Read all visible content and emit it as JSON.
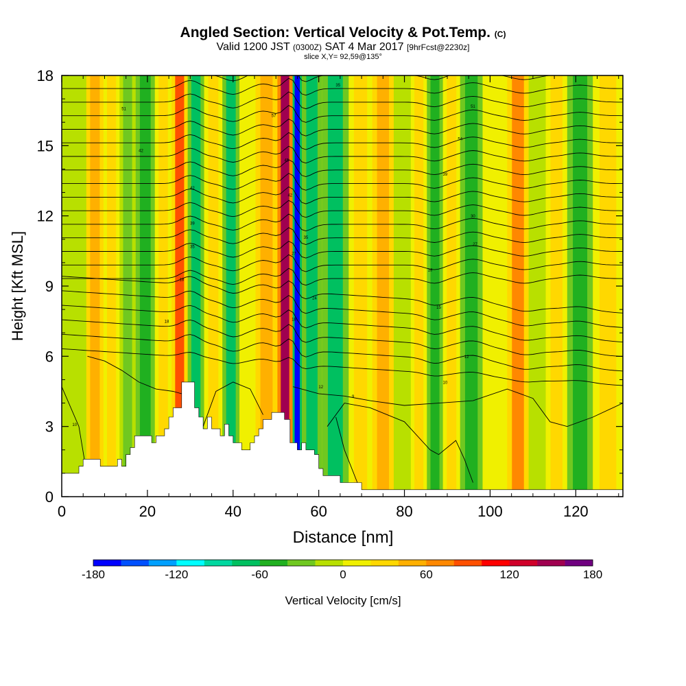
{
  "header": {
    "title": "Angled Section: Vertical Velocity & Pot.Temp.",
    "title_units": "(C)",
    "valid_prefix": "Valid 1200 JST",
    "valid_utc": "(0300Z)",
    "valid_date": "SAT 4 Mar 2017",
    "forecast_tag": "[9hrFcst@2230z]",
    "slice": "slice X,Y= 92,59@135°"
  },
  "chart_data": {
    "type": "heatmap",
    "title": "Angled Section: Vertical Velocity & Pot.Temp.",
    "xlabel": "Distance [nm]",
    "ylabel": "Height [Kft MSL]",
    "xlim": [
      0,
      131
    ],
    "ylim": [
      0,
      18
    ],
    "x_ticks": [
      "0",
      "20",
      "40",
      "60",
      "80",
      "100",
      "120"
    ],
    "y_ticks": [
      "0",
      "3",
      "6",
      "9",
      "12",
      "15",
      "18"
    ],
    "colorbar": {
      "label": "Vertical Velocity [cm/s]",
      "tick_labels": [
        "-180",
        "-120",
        "-60",
        "0",
        "60",
        "120",
        "180"
      ],
      "min": -180,
      "max": 180,
      "colors": [
        "#0000ff",
        "#0050ff",
        "#00a0ff",
        "#00ffff",
        "#00d8a0",
        "#00c060",
        "#20b020",
        "#70c820",
        "#b8e000",
        "#f0f000",
        "#ffd800",
        "#ffb000",
        "#ff8800",
        "#ff5000",
        "#ff0000",
        "#d0002a",
        "#a00050",
        "#700080"
      ]
    },
    "background_value": 20,
    "velocity_bands": [
      {
        "x": 4,
        "value": -20
      },
      {
        "x": 7.5,
        "value": 55
      },
      {
        "x": 12,
        "value": 20
      },
      {
        "x": 15,
        "value": -30
      },
      {
        "x": 19.5,
        "value": -45
      },
      {
        "x": 24,
        "value": 25
      },
      {
        "x": 27.3,
        "value": 80
      },
      {
        "x": 31.5,
        "value": -70
      },
      {
        "x": 35,
        "value": 30
      },
      {
        "x": 40,
        "value": -75
      },
      {
        "x": 43,
        "value": 0
      },
      {
        "x": 47.5,
        "value": 45
      },
      {
        "x": 53.2,
        "value": 140
      },
      {
        "x": 54.6,
        "value": -170
      },
      {
        "x": 57.5,
        "value": -70
      },
      {
        "x": 64,
        "value": -80
      },
      {
        "x": 70,
        "value": 20
      },
      {
        "x": 75,
        "value": 45
      },
      {
        "x": 80,
        "value": -20
      },
      {
        "x": 83,
        "value": 30
      },
      {
        "x": 87.5,
        "value": -45
      },
      {
        "x": 90.5,
        "value": 35
      },
      {
        "x": 95.5,
        "value": -55
      },
      {
        "x": 101,
        "value": 10
      },
      {
        "x": 107,
        "value": 60
      },
      {
        "x": 111,
        "value": -10
      },
      {
        "x": 115,
        "value": 30
      },
      {
        "x": 121,
        "value": -50
      },
      {
        "x": 127,
        "value": 20
      }
    ],
    "isentrope_labels": [
      {
        "x": 3,
        "y": 3.1,
        "text": "10"
      },
      {
        "x": 14.5,
        "y": 16.6,
        "text": "51"
      },
      {
        "x": 18.5,
        "y": 14.8,
        "text": "42"
      },
      {
        "x": 24.5,
        "y": 7.5,
        "text": "18"
      },
      {
        "x": 28,
        "y": 9.3,
        "text": "18"
      },
      {
        "x": 30.5,
        "y": 10.7,
        "text": "35"
      },
      {
        "x": 30.5,
        "y": 11.7,
        "text": "39"
      },
      {
        "x": 30.5,
        "y": 13.2,
        "text": "42"
      },
      {
        "x": 49.5,
        "y": 16.3,
        "text": "57"
      },
      {
        "x": 52.5,
        "y": 14.4,
        "text": "45"
      },
      {
        "x": 53.3,
        "y": 12.9,
        "text": "42"
      },
      {
        "x": 54.2,
        "y": 10.4,
        "text": "27"
      },
      {
        "x": 54.2,
        "y": 7.6,
        "text": "18"
      },
      {
        "x": 57,
        "y": 11.1,
        "text": "35"
      },
      {
        "x": 59,
        "y": 8.5,
        "text": "24"
      },
      {
        "x": 60.5,
        "y": 4.7,
        "text": "12"
      },
      {
        "x": 64.5,
        "y": 17.6,
        "text": "35"
      },
      {
        "x": 68,
        "y": 4.3,
        "text": "9"
      },
      {
        "x": 86,
        "y": 9.7,
        "text": "18"
      },
      {
        "x": 88,
        "y": 8.1,
        "text": "15"
      },
      {
        "x": 89.5,
        "y": 13.8,
        "text": "39"
      },
      {
        "x": 89.5,
        "y": 4.9,
        "text": "10"
      },
      {
        "x": 93,
        "y": 15.3,
        "text": "54"
      },
      {
        "x": 94.5,
        "y": 6,
        "text": "12"
      },
      {
        "x": 96,
        "y": 16.7,
        "text": "51"
      },
      {
        "x": 96,
        "y": 12,
        "text": "30"
      },
      {
        "x": 96.5,
        "y": 10.8,
        "text": "27"
      }
    ]
  },
  "colors": {
    "terrain": "#ffffff",
    "contour": "#000000",
    "background": "#ffffff"
  }
}
